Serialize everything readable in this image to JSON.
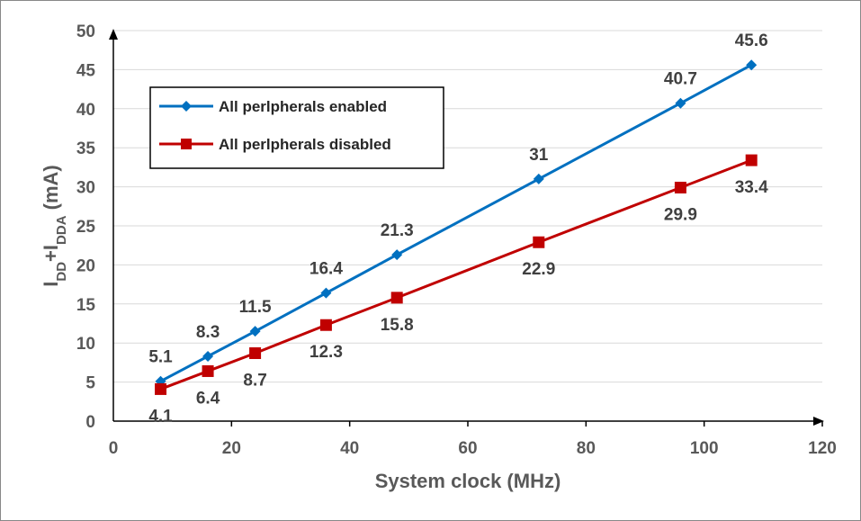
{
  "chart_data": {
    "type": "line",
    "title": "",
    "xlabel": "System clock (MHz)",
    "ylabel": {
      "prefix": "I",
      "sub1": "DD",
      "mid": "+I",
      "sub2": "DDA",
      "suffix": " (mA)"
    },
    "xlim": [
      0,
      120
    ],
    "ylim": [
      0,
      50
    ],
    "xticks": [
      0,
      20,
      40,
      60,
      80,
      100,
      120
    ],
    "yticks": [
      0,
      5,
      10,
      15,
      20,
      25,
      30,
      35,
      40,
      45,
      50
    ],
    "x": [
      8,
      16,
      24,
      36,
      48,
      72,
      96,
      108
    ],
    "grid": "horizontal",
    "legend_position": "top-left",
    "series": [
      {
        "name": "All perlpherals enabled",
        "color": "#0070c0",
        "marker": "diamond",
        "values": [
          5.1,
          8.3,
          11.5,
          16.4,
          21.3,
          31,
          40.7,
          45.6
        ],
        "labels": [
          "5.1",
          "8.3",
          "11.5",
          "16.4",
          "21.3",
          "31",
          "40.7",
          "45.6"
        ],
        "label_position": "above"
      },
      {
        "name": "All perlpherals disabled",
        "color": "#c00000",
        "marker": "square",
        "values": [
          4.1,
          6.4,
          8.7,
          12.3,
          15.8,
          22.9,
          29.9,
          33.4
        ],
        "labels": [
          "4.1",
          "6.4",
          "8.7",
          "12.3",
          "15.8",
          "22.9",
          "29.9",
          "33.4"
        ],
        "label_position": "below"
      }
    ]
  }
}
